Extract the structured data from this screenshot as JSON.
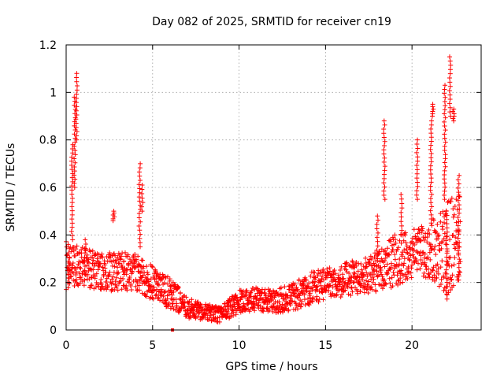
{
  "chart_data": {
    "type": "scatter",
    "title": "Day 082 of 2025, SRMTID for receiver cn19",
    "xlabel": "GPS time / hours",
    "ylabel": "SRMTID / TECUs",
    "xlim": [
      0,
      24
    ],
    "ylim": [
      0,
      1.2
    ],
    "x_ticks": [
      0,
      5,
      10,
      15,
      20
    ],
    "x_tick_labels": [
      "0",
      "5",
      "10",
      "15",
      "20"
    ],
    "y_ticks": [
      0,
      0.2,
      0.4,
      0.6,
      0.8,
      1.0,
      1.2
    ],
    "y_tick_labels": [
      "0",
      "0.2",
      "0.4",
      "0.6",
      "0.8",
      "1",
      "1.2"
    ],
    "grid": true,
    "marker": "+",
    "marker_color": "#ff0000",
    "baseline_envelope": {
      "x": [
        0.0,
        1.0,
        2.0,
        3.0,
        4.0,
        5.0,
        6.0,
        7.0,
        8.0,
        9.0,
        10.0,
        11.0,
        12.0,
        13.0,
        14.0,
        15.0,
        16.0,
        17.0,
        18.0,
        19.0,
        20.0,
        21.0,
        22.0,
        22.8
      ],
      "low": [
        0.17,
        0.18,
        0.17,
        0.16,
        0.17,
        0.12,
        0.09,
        0.05,
        0.04,
        0.03,
        0.07,
        0.08,
        0.07,
        0.08,
        0.1,
        0.13,
        0.14,
        0.15,
        0.16,
        0.18,
        0.22,
        0.22,
        0.15,
        0.2
      ],
      "high": [
        0.38,
        0.35,
        0.32,
        0.33,
        0.32,
        0.27,
        0.22,
        0.14,
        0.11,
        0.1,
        0.17,
        0.18,
        0.17,
        0.19,
        0.24,
        0.26,
        0.28,
        0.3,
        0.33,
        0.4,
        0.42,
        0.45,
        0.55,
        0.6
      ]
    },
    "spike_events": [
      {
        "x": 0.15,
        "min": 0.2,
        "max": 0.36
      },
      {
        "x": 0.35,
        "min": 0.38,
        "max": 0.78
      },
      {
        "x": 0.5,
        "min": 0.6,
        "max": 0.98
      },
      {
        "x": 0.6,
        "min": 0.8,
        "max": 1.08
      },
      {
        "x": 1.1,
        "min": 0.25,
        "max": 0.38
      },
      {
        "x": 2.75,
        "min": 0.46,
        "max": 0.5
      },
      {
        "x": 4.25,
        "min": 0.35,
        "max": 0.7
      },
      {
        "x": 4.4,
        "min": 0.5,
        "max": 0.61
      },
      {
        "x": 18.0,
        "min": 0.3,
        "max": 0.48
      },
      {
        "x": 18.4,
        "min": 0.55,
        "max": 0.88
      },
      {
        "x": 19.4,
        "min": 0.4,
        "max": 0.57
      },
      {
        "x": 20.3,
        "min": 0.55,
        "max": 0.8
      },
      {
        "x": 21.1,
        "min": 0.45,
        "max": 0.88
      },
      {
        "x": 21.2,
        "min": 0.9,
        "max": 0.95
      },
      {
        "x": 21.9,
        "min": 0.55,
        "max": 1.03
      },
      {
        "x": 22.0,
        "min": 0.13,
        "max": 0.5
      },
      {
        "x": 22.2,
        "min": 0.9,
        "max": 1.15
      },
      {
        "x": 22.4,
        "min": 0.88,
        "max": 0.93
      },
      {
        "x": 22.7,
        "min": 0.21,
        "max": 0.65
      }
    ],
    "outliers": [
      {
        "x": 6.15,
        "y": 0.0
      }
    ]
  }
}
